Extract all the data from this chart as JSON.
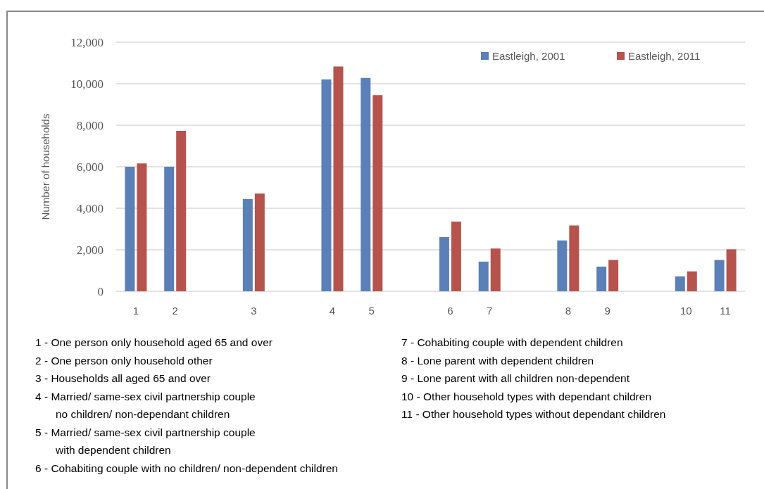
{
  "chart_data": {
    "type": "bar",
    "ylabel": "Number of households",
    "categories": [
      "1",
      "2",
      null,
      "3",
      null,
      "4",
      "5",
      null,
      "6",
      "7",
      null,
      "8",
      "9",
      null,
      "10",
      "11"
    ],
    "series": [
      {
        "name": "Eastleigh, 2001",
        "color": "#5b80b8",
        "values": [
          6000,
          6000,
          null,
          4440,
          null,
          10210,
          10280,
          null,
          2610,
          1430,
          null,
          2450,
          1190,
          null,
          720,
          1510
        ]
      },
      {
        "name": "Eastleigh, 2011",
        "color": "#b5534c",
        "values": [
          6160,
          7730,
          null,
          4710,
          null,
          10830,
          9450,
          null,
          3360,
          2060,
          null,
          3170,
          1510,
          null,
          960,
          2020
        ]
      }
    ],
    "ylim": [
      0,
      12000
    ],
    "yticks": [
      {
        "value": 0,
        "label": "0"
      },
      {
        "value": 2000,
        "label": "2,000"
      },
      {
        "value": 4000,
        "label": "4,000"
      },
      {
        "value": 6000,
        "label": "6,000"
      },
      {
        "value": 8000,
        "label": "8,000"
      },
      {
        "value": 10000,
        "label": "10,000"
      },
      {
        "value": 12000,
        "label": "12,000"
      }
    ],
    "grid": "y",
    "legend": "top right",
    "annotations": [
      "1 - One person only household aged 65 and over",
      "2 - One person only household other",
      "3 - Households all aged 65 and over",
      "4 - Married/ same-sex civil partnership couple\nno children/ non-dependant children",
      "5 - Married/ same-sex civil partnership couple\nwith dependent children",
      "6 - Cohabiting couple with no children/ non-dependent children",
      "7 - Cohabiting couple with dependent children",
      "8 - Lone parent with dependent children",
      "9 - Lone parent with all children non-dependent",
      "10 - Other household types with dependant children",
      "11 - Other household types without dependant children"
    ]
  }
}
